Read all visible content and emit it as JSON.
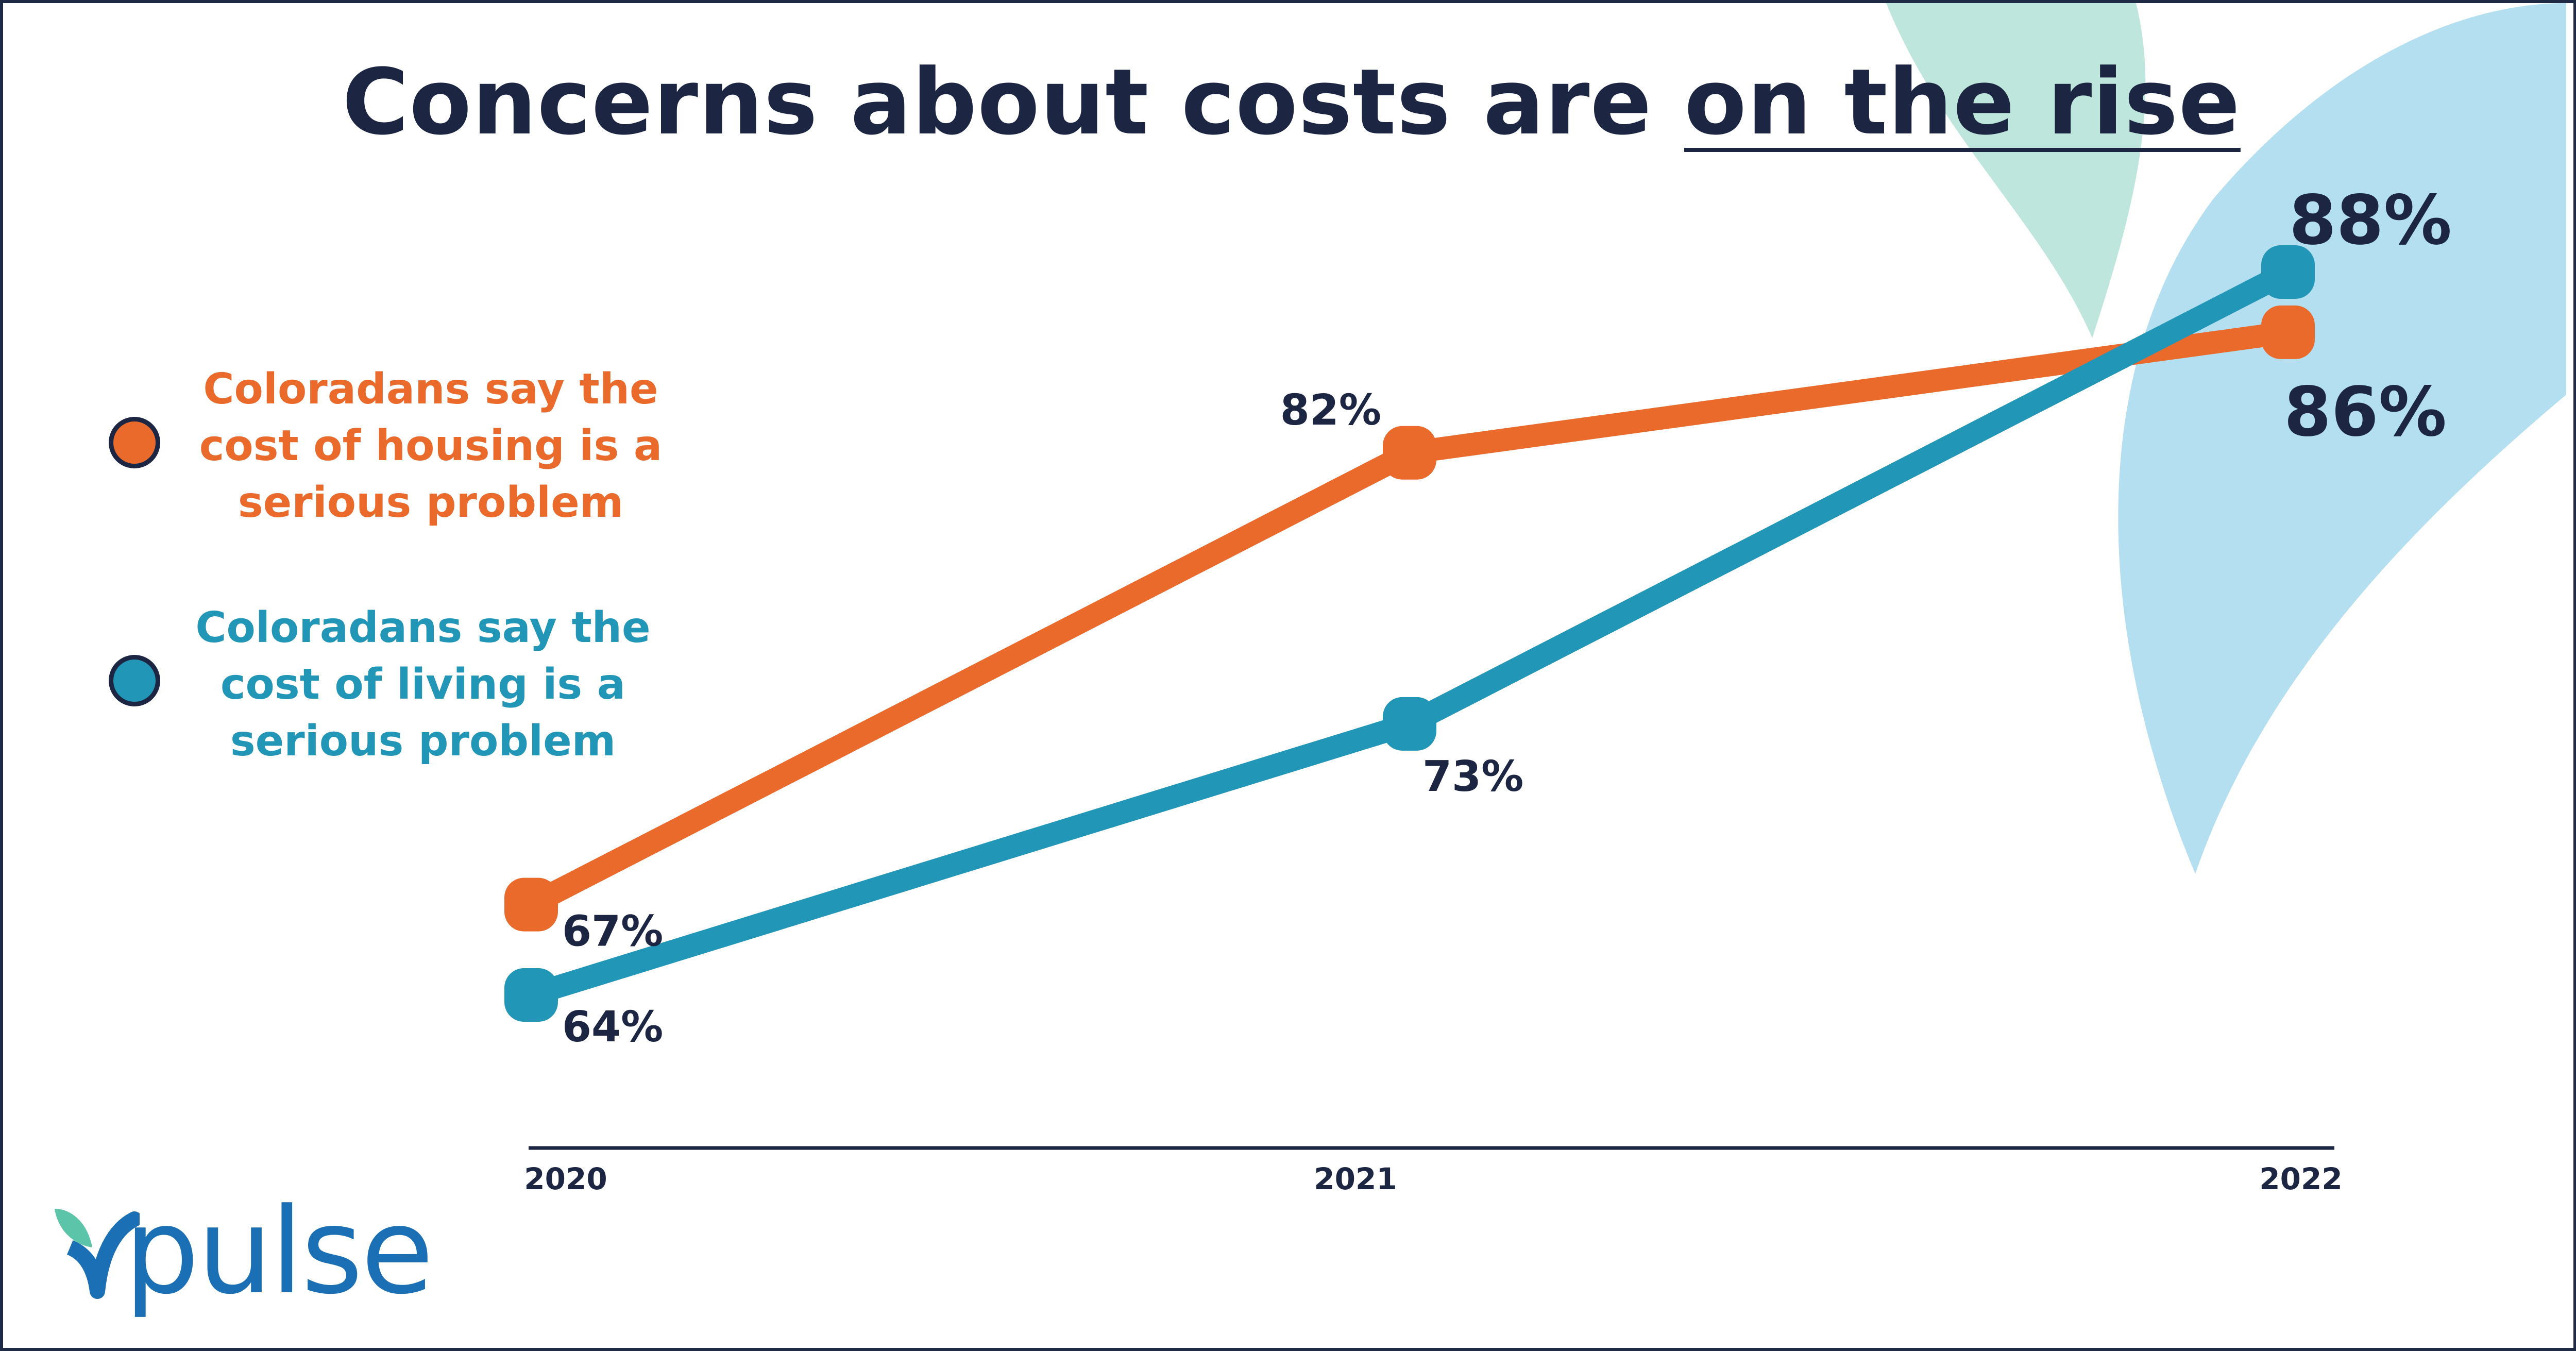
{
  "title": {
    "prefix": "Concerns about costs are ",
    "highlight": "on the rise"
  },
  "legend": [
    {
      "lines": [
        "Coloradans say the",
        "cost of housing is a",
        "serious problem"
      ],
      "color": "#ea6a2c"
    },
    {
      "lines": [
        "Coloradans say the",
        "cost of living is a",
        "serious problem"
      ],
      "color": "#2196b6"
    }
  ],
  "chart_data": {
    "type": "line",
    "x": [
      "2020",
      "2021",
      "2022"
    ],
    "series": [
      {
        "name": "Coloradans say the cost of housing is a serious problem",
        "values": [
          67,
          82,
          86
        ],
        "labels": [
          "67%",
          "82%",
          "86%"
        ],
        "color": "#ea6a2c"
      },
      {
        "name": "Coloradans say the cost of living is a serious problem",
        "values": [
          64,
          73,
          88
        ],
        "labels": [
          "64%",
          "73%",
          "88%"
        ],
        "color": "#2196b6"
      }
    ],
    "title": "Concerns about costs are on the rise",
    "xlabel": "",
    "ylabel": "",
    "ylim": [
      55,
      95
    ],
    "grid": false,
    "legend_position": "left"
  },
  "logo": {
    "text": "pulse"
  },
  "colors": {
    "navy": "#1c2541",
    "leaf_green": "#bfe6dc",
    "leaf_blue": "#b3dff1"
  }
}
